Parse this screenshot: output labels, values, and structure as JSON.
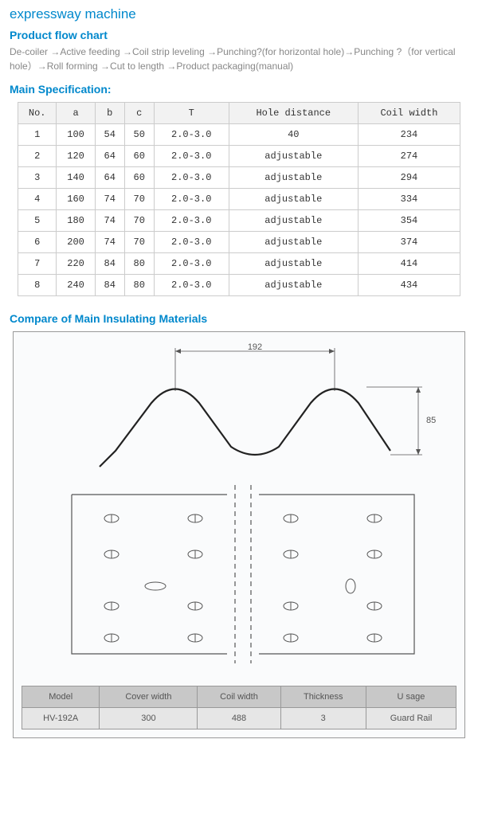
{
  "page_title": "expressway machine",
  "flow": {
    "heading": "Product  flow chart",
    "text": "De-coiler →Active feeding →Coil strip leveling →Punching?(for horizontal hole)→Punching ?（for vertical hole）→Roll forming →Cut to length →Product packaging(manual)"
  },
  "spec": {
    "heading": "Main Specification:",
    "columns": [
      "No.",
      "a",
      "b",
      "c",
      "T",
      "Hole distance",
      "Coil width"
    ],
    "rows": [
      [
        "1",
        "100",
        "54",
        "50",
        "2.0-3.0",
        "40",
        "234"
      ],
      [
        "2",
        "120",
        "64",
        "60",
        "2.0-3.0",
        "adjustable",
        "274"
      ],
      [
        "3",
        "140",
        "64",
        "60",
        "2.0-3.0",
        "adjustable",
        "294"
      ],
      [
        "4",
        "160",
        "74",
        "70",
        "2.0-3.0",
        "adjustable",
        "334"
      ],
      [
        "5",
        "180",
        "74",
        "70",
        "2.0-3.0",
        "adjustable",
        "354"
      ],
      [
        "6",
        "200",
        "74",
        "70",
        "2.0-3.0",
        "adjustable",
        "374"
      ],
      [
        "7",
        "220",
        "84",
        "80",
        "2.0-3.0",
        "adjustable",
        "414"
      ],
      [
        "8",
        "240",
        "84",
        "80",
        "2.0-3.0",
        "adjustable",
        "434"
      ]
    ]
  },
  "compare": {
    "heading": "Compare of Main Insulating Materials",
    "profile": {
      "pitch_label": "192",
      "height_label": "85",
      "stroke_color": "#222",
      "stroke_width": 2.2,
      "dim_color": "#555",
      "dim_width": 0.8
    },
    "plate": {
      "stroke_color": "#555",
      "stroke_width": 1.2,
      "dash": "6,5"
    },
    "table": {
      "columns": [
        "Model",
        "Cover width",
        "Coil width",
        "Thickness",
        "U sage"
      ],
      "rows": [
        [
          "HV-192A",
          "300",
          "488",
          "3",
          "Guard Rail"
        ]
      ]
    }
  },
  "colors": {
    "accent": "#0088cc",
    "text_muted": "#888",
    "border": "#ccc"
  }
}
